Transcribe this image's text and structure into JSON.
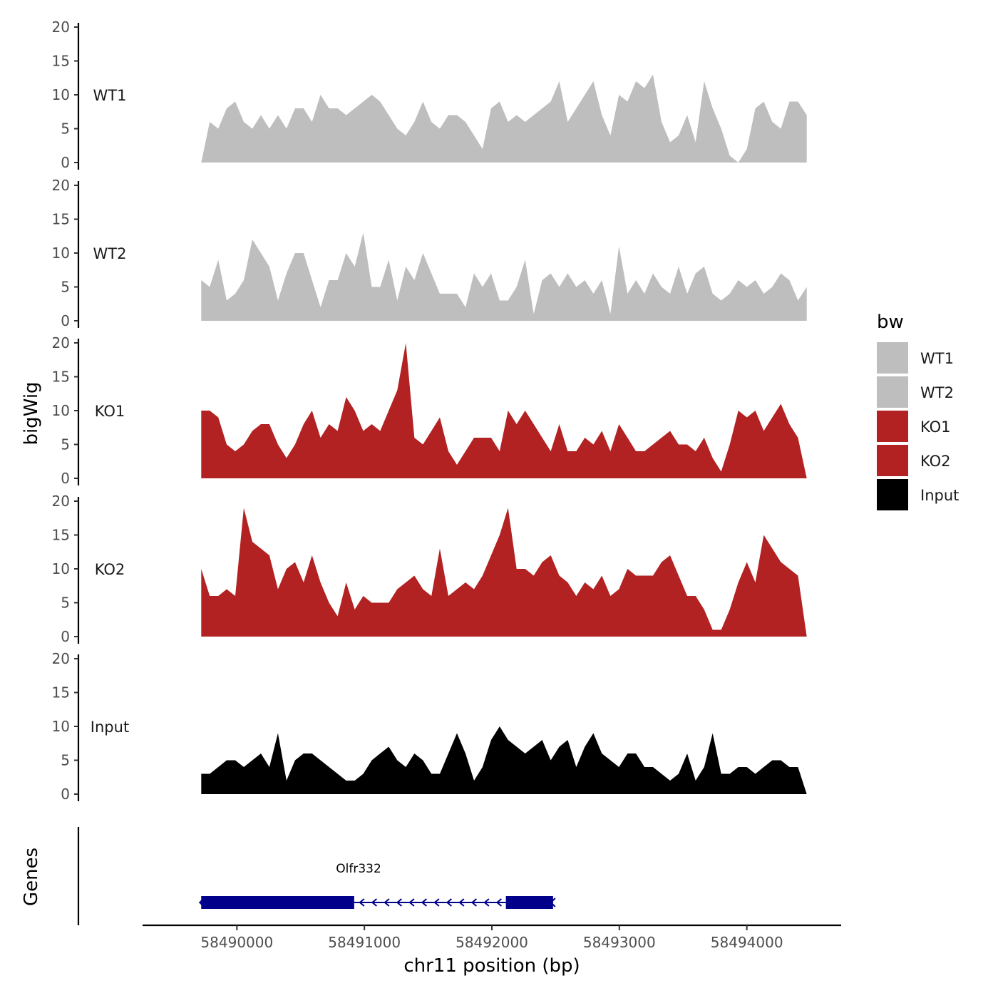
{
  "chart_data": {
    "type": "area",
    "ylabel": "bigWig",
    "xlabel": "chr11 position (bp)",
    "ylim": [
      0,
      20
    ],
    "y_ticks": [
      0,
      5,
      10,
      15,
      20
    ],
    "xlim": [
      58489260,
      58494740
    ],
    "x_ticks": [
      58490000,
      58491000,
      58492000,
      58493000,
      58494000
    ],
    "x_tick_labels": [
      "58490000",
      "58491000",
      "58492000",
      "58493000",
      "58494000"
    ],
    "legend": {
      "title": "bw",
      "position": "right",
      "entries": [
        {
          "name": "WT1",
          "color": "#bebebe"
        },
        {
          "name": "WT2",
          "color": "#bebebe"
        },
        {
          "name": "KO1",
          "color": "#b22222"
        },
        {
          "name": "KO2",
          "color": "#b22222"
        },
        {
          "name": "Input",
          "color": "#000000"
        }
      ]
    },
    "x": [
      58489720,
      58489787,
      58489854,
      58489920,
      58489987,
      58490054,
      58490121,
      58490188,
      58490255,
      58490322,
      58490389,
      58490456,
      58490523,
      58490589,
      58490656,
      58490723,
      58490790,
      58490857,
      58490924,
      58490991,
      58491058,
      58491124,
      58491191,
      58491258,
      58491325,
      58491392,
      58491459,
      58491526,
      58491592,
      58491659,
      58491726,
      58491793,
      58491860,
      58491927,
      58491994,
      58492061,
      58492127,
      58492194,
      58492261,
      58492328,
      58492395,
      58492462,
      58492529,
      58492595,
      58492662,
      58492729,
      58492796,
      58492863,
      58492930,
      58492997,
      58493064,
      58493130,
      58493197,
      58493264,
      58493331,
      58493398,
      58493465,
      58493532,
      58493598,
      58493665,
      58493732,
      58493799,
      58493866,
      58493933,
      58494000,
      58494067,
      58494133,
      58494200,
      58494267,
      58494334,
      58494401,
      58494470
    ],
    "series": [
      {
        "name": "WT1",
        "color": "#bebebe",
        "values": [
          0,
          6,
          5,
          8,
          9,
          6,
          5,
          7,
          5,
          7,
          5,
          8,
          8,
          6,
          10,
          8,
          8,
          7,
          8,
          9,
          10,
          9,
          7,
          5,
          4,
          6,
          9,
          6,
          5,
          7,
          7,
          6,
          4,
          2,
          8,
          9,
          6,
          7,
          6,
          7,
          8,
          9,
          12,
          6,
          8,
          10,
          12,
          7,
          4,
          10,
          9,
          12,
          11,
          13,
          6,
          3,
          4,
          7,
          3,
          12,
          8,
          5,
          1,
          0,
          2,
          8,
          9,
          6,
          5,
          9,
          9,
          7
        ]
      },
      {
        "name": "WT2",
        "color": "#bebebe",
        "values": [
          6,
          5,
          9,
          3,
          4,
          6,
          12,
          10,
          8,
          3,
          7,
          10,
          10,
          6,
          2,
          6,
          6,
          10,
          8,
          13,
          5,
          5,
          9,
          3,
          8,
          6,
          10,
          7,
          4,
          4,
          4,
          2,
          7,
          5,
          7,
          3,
          3,
          5,
          9,
          1,
          6,
          7,
          5,
          7,
          5,
          6,
          4,
          6,
          1,
          11,
          4,
          6,
          4,
          7,
          5,
          4,
          8,
          4,
          7,
          8,
          4,
          3,
          4,
          6,
          5,
          6,
          4,
          5,
          7,
          6,
          3,
          5
        ]
      },
      {
        "name": "KO1",
        "color": "#b22222",
        "values": [
          10,
          10,
          9,
          5,
          4,
          5,
          7,
          8,
          8,
          5,
          3,
          5,
          8,
          10,
          6,
          8,
          7,
          12,
          10,
          7,
          8,
          7,
          10,
          13,
          20,
          6,
          5,
          7,
          9,
          4,
          2,
          4,
          6,
          6,
          6,
          4,
          10,
          8,
          10,
          8,
          6,
          4,
          8,
          4,
          4,
          6,
          5,
          7,
          4,
          8,
          6,
          4,
          4,
          5,
          6,
          7,
          5,
          5,
          4,
          6,
          3,
          1,
          5,
          10,
          9,
          10,
          7,
          9,
          11,
          8,
          6,
          0
        ]
      },
      {
        "name": "KO2",
        "color": "#b22222",
        "values": [
          10,
          6,
          6,
          7,
          6,
          19,
          14,
          13,
          12,
          7,
          10,
          11,
          8,
          12,
          8,
          5,
          3,
          8,
          4,
          6,
          5,
          5,
          5,
          7,
          8,
          9,
          7,
          6,
          13,
          6,
          7,
          8,
          7,
          9,
          12,
          15,
          19,
          10,
          10,
          9,
          11,
          12,
          9,
          8,
          6,
          8,
          7,
          9,
          6,
          7,
          10,
          9,
          9,
          9,
          11,
          12,
          9,
          6,
          6,
          4,
          1,
          1,
          4,
          8,
          11,
          8,
          15,
          13,
          11,
          10,
          9,
          0
        ]
      },
      {
        "name": "Input",
        "color": "#000000",
        "values": [
          3,
          3,
          4,
          5,
          5,
          4,
          5,
          6,
          4,
          9,
          2,
          5,
          6,
          6,
          5,
          4,
          3,
          2,
          2,
          3,
          5,
          6,
          7,
          5,
          4,
          6,
          5,
          3,
          3,
          6,
          9,
          6,
          2,
          4,
          8,
          10,
          8,
          7,
          6,
          7,
          8,
          5,
          7,
          8,
          4,
          7,
          9,
          6,
          5,
          4,
          6,
          6,
          4,
          4,
          3,
          2,
          3,
          6,
          2,
          4,
          9,
          3,
          3,
          4,
          4,
          3,
          4,
          5,
          5,
          4,
          4,
          0
        ]
      }
    ],
    "genes": {
      "title": "Genes",
      "items": [
        {
          "name": "Olfr332",
          "strand": "-",
          "start": 58489720,
          "end": 58492480,
          "exons": [
            [
              58489720,
              58490920
            ],
            [
              58492110,
              58492480
            ]
          ]
        }
      ]
    }
  }
}
